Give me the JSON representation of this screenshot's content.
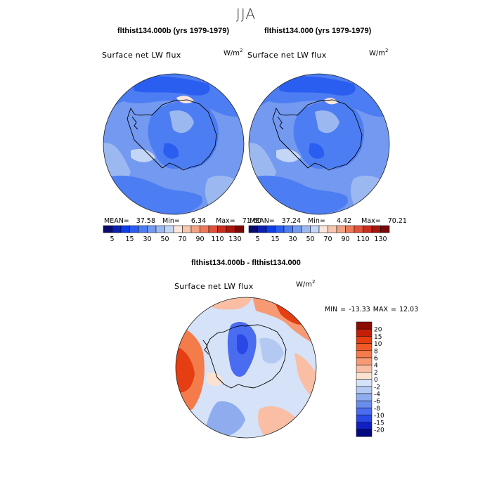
{
  "suptitle": "JJA",
  "chart_data": [
    {
      "type": "heatmap",
      "title": "flthist134.000b (yrs 1979-1979)",
      "variable_label": "Surface net LW flux",
      "units_base": "W/m",
      "units_exp": "2",
      "stats": {
        "mean_label": "MEAN=",
        "mean": "37.58",
        "min_label": "Min=",
        "min": "6.34",
        "max_label": "Max=",
        "max": "71.60"
      },
      "colorbar": {
        "colors": [
          "#0a0a6e",
          "#0b1fb0",
          "#0d3ee6",
          "#2a5ef0",
          "#4d7df2",
          "#7399f0",
          "#9bb8f0",
          "#c4d6f5",
          "#fbe6dc",
          "#f7c6ae",
          "#f2a284",
          "#ec7a5a",
          "#e0523a",
          "#c92d1e",
          "#a8150f",
          "#7a0808"
        ],
        "tick_labels": [
          "5",
          "15",
          "30",
          "50",
          "70",
          "90",
          "110",
          "130"
        ]
      }
    },
    {
      "type": "heatmap",
      "title": "flthist134.000 (yrs 1979-1979)",
      "variable_label": "Surface net LW flux",
      "units_base": "W/m",
      "units_exp": "2",
      "stats": {
        "mean_label": "MEAN=",
        "mean": "37.24",
        "min_label": "Min=",
        "min": "4.42",
        "max_label": "Max=",
        "max": "70.21"
      },
      "colorbar": {
        "colors": [
          "#0a0a6e",
          "#0b1fb0",
          "#0d3ee6",
          "#2a5ef0",
          "#4d7df2",
          "#7399f0",
          "#9bb8f0",
          "#c4d6f5",
          "#fbe6dc",
          "#f7c6ae",
          "#f2a284",
          "#ec7a5a",
          "#e0523a",
          "#c92d1e",
          "#a8150f",
          "#7a0808"
        ],
        "tick_labels": [
          "5",
          "15",
          "30",
          "50",
          "70",
          "90",
          "110",
          "130"
        ]
      }
    },
    {
      "type": "heatmap",
      "title": "flthist134.000b - flthist134.000",
      "variable_label": "Surface net LW flux",
      "units_base": "W/m",
      "units_exp": "2",
      "minmax_text": "MIN = -13.33 MAX =  12.03",
      "colorbar": {
        "colors_top_to_bottom": [
          "#8b0c00",
          "#c41e07",
          "#e43e12",
          "#f05a28",
          "#f47b4a",
          "#f79a74",
          "#f9bea4",
          "#fbe2d0",
          "#d6e2f7",
          "#b4c9f2",
          "#8fadee",
          "#6a8ded",
          "#4a6cf0",
          "#2a48e6",
          "#0f1fc2",
          "#030a80"
        ],
        "tick_labels_top_to_bottom": [
          "20",
          "15",
          "10",
          "8",
          "6",
          "4",
          "2",
          "0",
          "-2",
          "-4",
          "-6",
          "-8",
          "-10",
          "-15",
          "-20"
        ]
      }
    }
  ]
}
